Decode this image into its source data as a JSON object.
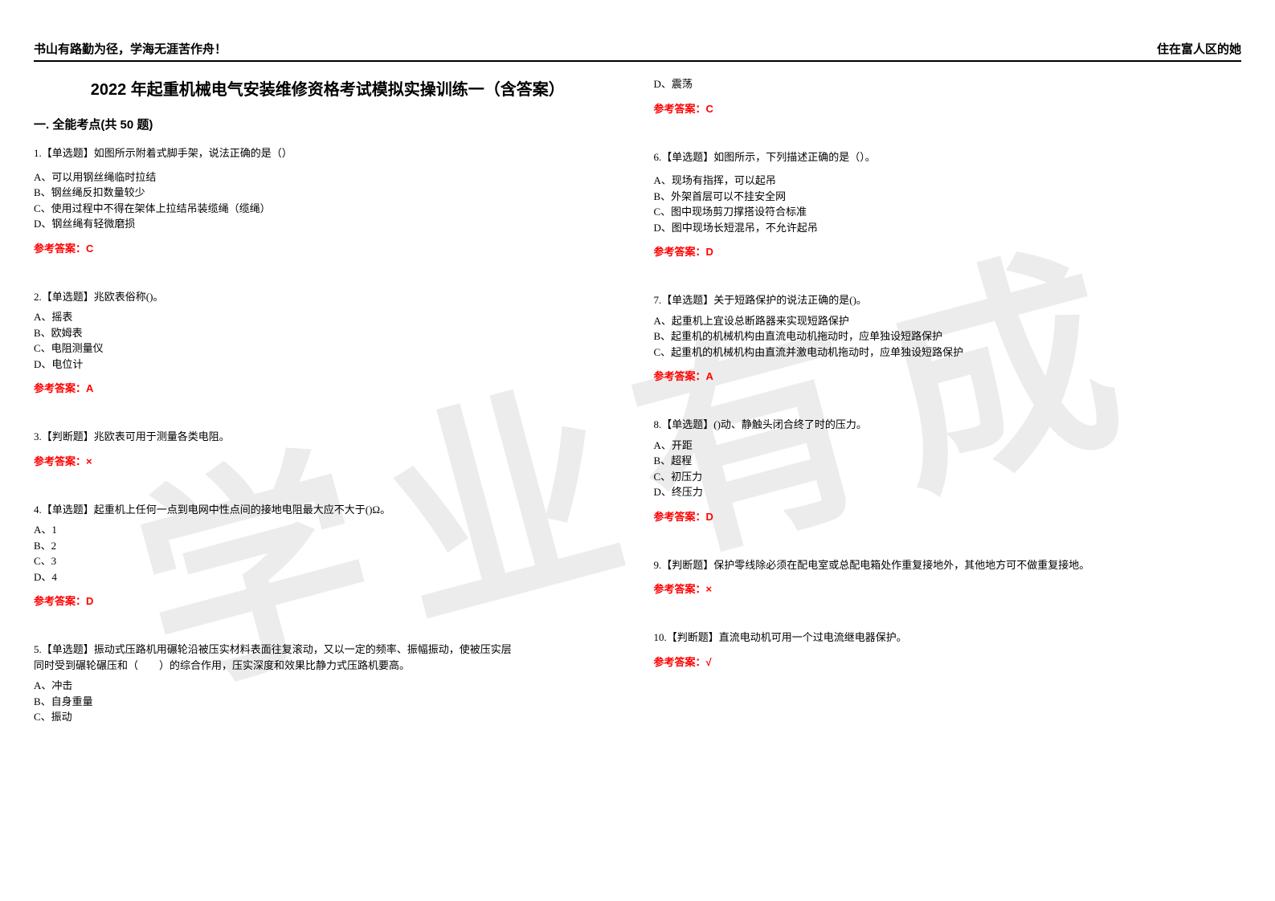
{
  "watermark": "学业有成",
  "header": {
    "left": "书山有路勤为径，学海无涯苦作舟！",
    "right": "住在富人区的她"
  },
  "title": "2022 年起重机械电气安装维修资格考试模拟实操训练一（含答案）",
  "section_title": "一. 全能考点(共 50 题)",
  "left_column": {
    "q1": {
      "stem": "1.【单选题】如图所示附着式脚手架，说法正确的是（）",
      "a": "A、可以用钢丝绳临时拉结",
      "b": "B、钢丝绳反扣数量较少",
      "c": "C、使用过程中不得在架体上拉结吊装缆绳（缆绳）",
      "d": "D、钢丝绳有轻微磨损",
      "answer": "参考答案：C"
    },
    "q2": {
      "stem": "2.【单选题】兆欧表俗称()。",
      "a": "A、摇表",
      "b": "B、欧姆表",
      "c": "C、电阻测量仪",
      "d": "D、电位计",
      "answer": "参考答案：A"
    },
    "q3": {
      "stem": "3.【判断题】兆欧表可用于测量各类电阻。",
      "answer": "参考答案：×"
    },
    "q4": {
      "stem": "4.【单选题】起重机上任何一点到电网中性点间的接地电阻最大应不大于()Ω。",
      "a": "A、1",
      "b": "B、2",
      "c": "C、3",
      "d": "D、4",
      "answer": "参考答案：D"
    },
    "q5": {
      "stem1": "5.【单选题】振动式压路机用碾轮沿被压实材料表面往复滚动，又以一定的频率、振幅振动，使被压实层",
      "stem2": "同时受到碾轮碾压和（　　）的综合作用，压实深度和效果比静力式压路机要高。",
      "a": "A、冲击",
      "b": "B、自身重量",
      "c": "C、振动"
    }
  },
  "right_column": {
    "q5_cont": {
      "d": "D、震荡",
      "answer": "参考答案：C"
    },
    "q6": {
      "stem": "6.【单选题】如图所示，下列描述正确的是（）。",
      "a": "A、现场有指挥，可以起吊",
      "b": "B、外架首层可以不挂安全网",
      "c": "C、图中现场剪刀撑搭设符合标准",
      "d": "D、图中现场长短混吊，不允许起吊",
      "answer": "参考答案：D"
    },
    "q7": {
      "stem": "7.【单选题】关于短路保护的说法正确的是()。",
      "a": "A、起重机上宜设总断路器来实现短路保护",
      "b": "B、起重机的机械机构由直流电动机拖动时，应单独设短路保护",
      "c": "C、起重机的机械机构由直流并激电动机拖动时，应单独设短路保护",
      "answer": "参考答案：A"
    },
    "q8": {
      "stem": "8.【单选题】()动、静触头闭合终了时的压力。",
      "a": "A、开距",
      "b": "B、超程",
      "c": "C、初压力",
      "d": "D、终压力",
      "answer": "参考答案：D"
    },
    "q9": {
      "stem": "9.【判断题】保护零线除必须在配电室或总配电箱处作重复接地外，其他地方可不做重复接地。",
      "answer": "参考答案：×"
    },
    "q10": {
      "stem": "10.【判断题】直流电动机可用一个过电流继电器保护。",
      "answer": "参考答案：√"
    }
  },
  "colors": {
    "answer_color": "#ff0000",
    "text_color": "#000000",
    "background": "#ffffff",
    "watermark_color": "rgba(200,200,200,0.35)"
  }
}
